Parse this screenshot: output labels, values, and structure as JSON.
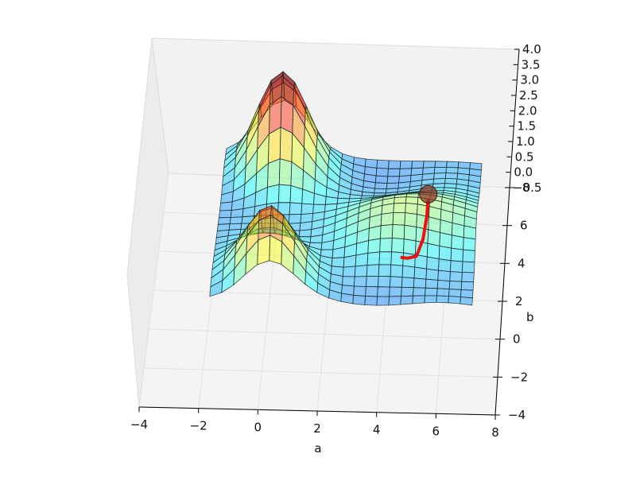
{
  "chart_data": {
    "type": "surface3d",
    "xlabel": "a",
    "ylabel": "b",
    "zlabel": "",
    "x_ticks": [
      "−4",
      "−2",
      "0",
      "2",
      "4",
      "6",
      "8"
    ],
    "y_ticks": [
      "−4",
      "−2",
      "0",
      "2",
      "4",
      "6",
      "8"
    ],
    "z_ticks": [
      "−0.5",
      "0.0",
      "0.5",
      "1.0",
      "1.5",
      "2.0",
      "2.5",
      "3.0",
      "3.5",
      "4.0"
    ],
    "xlim": [
      -4,
      8
    ],
    "ylim": [
      -4,
      8
    ],
    "zlim": [
      -0.5,
      4.0
    ],
    "grid": true,
    "colormap": "jet",
    "surface_alpha": 0.45,
    "surface_features": [
      {
        "kind": "peak",
        "a": 0.0,
        "b": 7.5,
        "height": 3.9
      },
      {
        "kind": "peak",
        "a": 0.0,
        "b": 2.0,
        "height": 2.8
      },
      {
        "kind": "ridge",
        "a": 5.0,
        "b": 4.5,
        "height": 1.4
      }
    ],
    "trajectory": {
      "color": "#ee1111",
      "points": [
        [
          5.3,
          4.6
        ],
        [
          5.3,
          4.0
        ],
        [
          5.2,
          3.3
        ],
        [
          5.0,
          2.8
        ],
        [
          4.7,
          2.7
        ],
        [
          4.5,
          2.7
        ]
      ]
    },
    "marker": {
      "a": 5.3,
      "b": 4.9,
      "color": "#8a3a2a"
    }
  }
}
